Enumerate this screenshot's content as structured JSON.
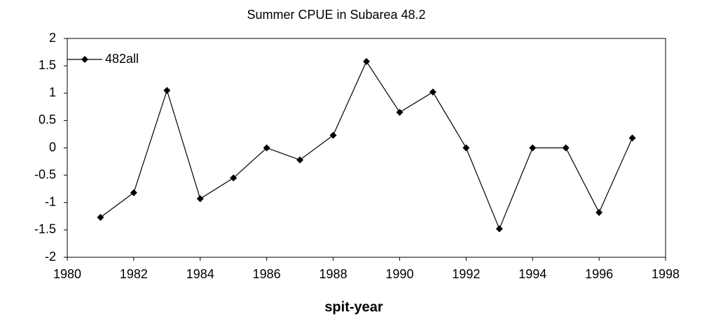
{
  "chart_data": {
    "type": "line",
    "title": "Summer CPUE in Subarea 48.2",
    "x_label": "spit-year",
    "x": [
      1981,
      1982,
      1983,
      1984,
      1985,
      1986,
      1987,
      1988,
      1989,
      1990,
      1991,
      1992,
      1993,
      1994,
      1995,
      1996,
      1997
    ],
    "series": [
      {
        "name": "482all",
        "color": "#000000",
        "values": [
          -1.27,
          -0.82,
          1.05,
          -0.93,
          -0.55,
          0.0,
          -0.22,
          0.23,
          1.58,
          0.65,
          1.02,
          0.0,
          -1.48,
          0.0,
          0.0,
          -1.18,
          0.18
        ]
      }
    ],
    "xlim": [
      1980,
      1998
    ],
    "xticks": [
      1980,
      1982,
      1984,
      1986,
      1988,
      1990,
      1992,
      1994,
      1996,
      1998
    ],
    "ylim": [
      -2,
      2
    ],
    "yticks": [
      -2,
      -1.5,
      -1,
      -0.5,
      0,
      0.5,
      1,
      1.5,
      2
    ],
    "grid": false,
    "legend": "upper left"
  }
}
